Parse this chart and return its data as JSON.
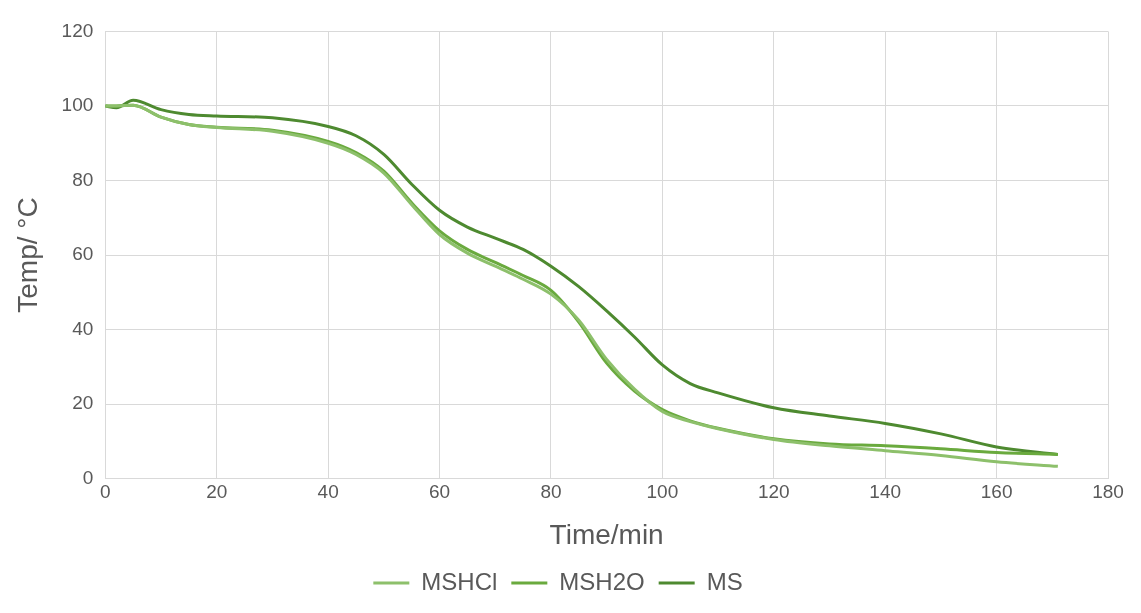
{
  "chart_data": {
    "type": "line",
    "xlabel": "Time/min",
    "ylabel": "Temp/ °C",
    "xlim": [
      0,
      180
    ],
    "xticks": [
      0,
      20,
      40,
      60,
      80,
      100,
      120,
      140,
      160,
      180
    ],
    "ylim": [
      0,
      120
    ],
    "yticks": [
      0,
      20,
      40,
      60,
      80,
      100,
      120
    ],
    "grid": true,
    "legend": "bottom",
    "marker": "none",
    "line_style": "solid",
    "x": [
      0,
      2,
      5,
      10,
      15,
      20,
      30,
      40,
      45,
      50,
      55,
      60,
      65,
      70,
      75,
      80,
      85,
      90,
      95,
      100,
      105,
      110,
      120,
      130,
      140,
      150,
      160,
      171
    ],
    "series": [
      {
        "name": "MSHCl",
        "color": "#8dc06b",
        "values": [
          100,
          100,
          100.2,
          97,
          95,
          94.2,
          93.2,
          90,
          87,
          82,
          73.5,
          65.5,
          60.5,
          57,
          53.5,
          49.5,
          42.5,
          32,
          24,
          18,
          15.3,
          13.4,
          10.5,
          8.8,
          7.5,
          6.2,
          4.5,
          3.3
        ]
      },
      {
        "name": "MSH2O",
        "color": "#6aaa3e",
        "values": [
          100,
          100,
          100.2,
          97,
          95,
          94.3,
          93.5,
          90.5,
          87.5,
          82.5,
          74,
          66.5,
          61.5,
          58,
          54.5,
          50.5,
          42,
          31,
          23.5,
          18.5,
          15.5,
          13.5,
          10.7,
          9.3,
          8.8,
          8,
          7,
          6.5
        ]
      },
      {
        "name": "MS",
        "color": "#4e8a30",
        "values": [
          100,
          99.5,
          101.5,
          99,
          97.7,
          97.3,
          96.8,
          94.5,
          92,
          87,
          79,
          72,
          67.5,
          64.5,
          61.5,
          57,
          51.5,
          45,
          38,
          30.5,
          25.5,
          23,
          19,
          16.8,
          14.8,
          12,
          8.5,
          6.5
        ]
      }
    ]
  }
}
